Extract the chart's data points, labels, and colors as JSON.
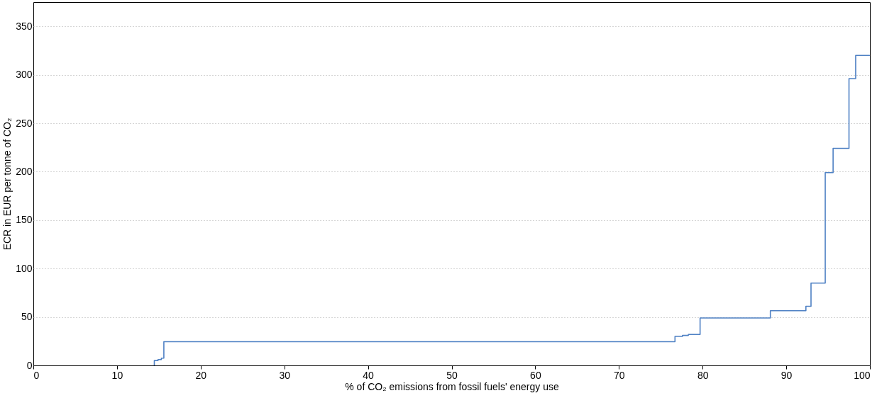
{
  "chart_data": {
    "type": "step",
    "xlabel": "% of CO₂ emissions from fossil fuels' energy use",
    "ylabel": "ECR in EUR per tonne of CO₂",
    "x": [
      14.46,
      14.46,
      14.9,
      15.3,
      15.6,
      76.7,
      77.6,
      78.3,
      79.7,
      88.1,
      92.35,
      92.96,
      94.66,
      95.6,
      97.5,
      98.3,
      100
    ],
    "series": [
      {
        "color": "#4f81c4",
        "values": [
          0,
          5,
          6,
          7.5,
          24.5,
          30,
          31,
          32,
          49,
          56.5,
          61,
          85,
          199,
          224,
          296,
          320,
          320
        ]
      }
    ],
    "xlim": [
      0,
      100
    ],
    "xticks": [
      0,
      10,
      20,
      30,
      40,
      50,
      60,
      70,
      80,
      90,
      100
    ],
    "ylim": [
      0,
      375
    ],
    "yticks": [
      0,
      50,
      100,
      150,
      200,
      250,
      300,
      350
    ],
    "grid": "y"
  }
}
